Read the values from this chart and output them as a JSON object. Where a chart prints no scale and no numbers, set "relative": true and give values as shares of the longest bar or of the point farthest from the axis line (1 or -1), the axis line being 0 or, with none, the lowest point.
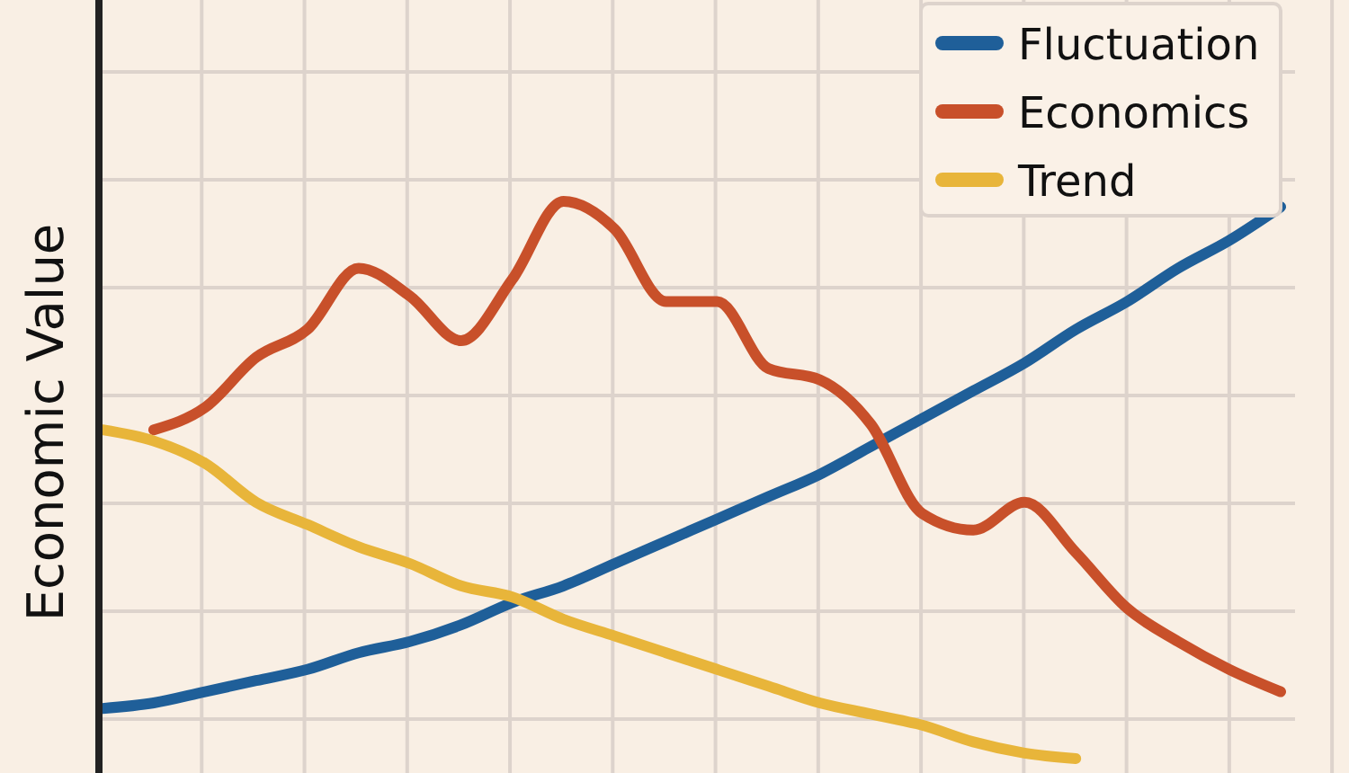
{
  "chart_data": {
    "type": "line",
    "ylabel": "Economic Value",
    "relative": true,
    "grid": true,
    "legend": "top right",
    "line_style": "solid",
    "categories": [
      null,
      null,
      null,
      null,
      null,
      null,
      null,
      null,
      null,
      null,
      null,
      null,
      null,
      null,
      null,
      null,
      null,
      null,
      null,
      null,
      null,
      null,
      null,
      null
    ],
    "series": [
      {
        "name": "Fluctuation",
        "color": "#1f5f99",
        "values": [
          0.09,
          0.1,
          0.12,
          0.14,
          0.16,
          0.19,
          0.21,
          0.24,
          0.28,
          0.31,
          0.35,
          0.39,
          0.43,
          0.47,
          0.51,
          0.56,
          0.61,
          0.66,
          0.71,
          0.77,
          0.82,
          0.88,
          0.93,
          0.99
        ]
      },
      {
        "name": "Economics",
        "color": "#c8502a",
        "values": [
          null,
          0.59,
          0.63,
          0.72,
          0.77,
          0.88,
          0.83,
          0.75,
          0.86,
          1,
          0.95,
          0.82,
          0.82,
          0.7,
          0.68,
          0.6,
          0.44,
          0.41,
          0.46,
          0.37,
          0.27,
          0.21,
          0.16,
          0.12
        ]
      },
      {
        "name": "Trend",
        "color": "#e8b53a",
        "values": [
          0.59,
          0.57,
          0.53,
          0.46,
          0.42,
          0.38,
          0.35,
          0.31,
          0.29,
          0.25,
          0.22,
          0.19,
          0.16,
          0.13,
          0.1,
          0.08,
          0.06,
          0.03,
          0.01,
          0,
          null,
          null,
          null,
          null
        ]
      }
    ]
  }
}
